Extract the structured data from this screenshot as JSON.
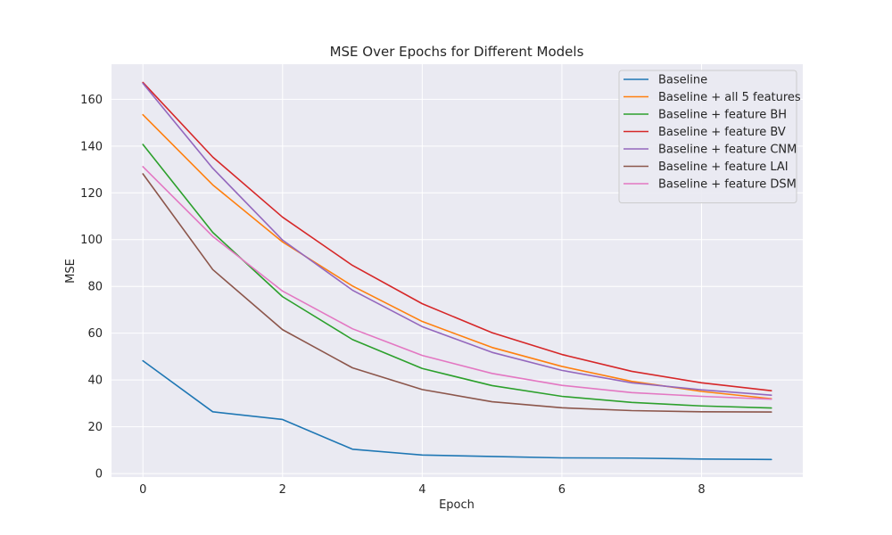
{
  "chart_data": {
    "type": "line",
    "title": "MSE Over Epochs for Different Models",
    "xlabel": "Epoch",
    "ylabel": "MSE",
    "xlim": [
      -0.45,
      9.45
    ],
    "ylim": [
      -1.5,
      175
    ],
    "xticks": [
      0,
      2,
      4,
      6,
      8
    ],
    "yticks": [
      0,
      20,
      40,
      60,
      80,
      100,
      120,
      140,
      160
    ],
    "grid": true,
    "legend_position": "top-right",
    "x": [
      0,
      1,
      2,
      3,
      4,
      5,
      6,
      7,
      8,
      9
    ],
    "series": [
      {
        "name": "Baseline",
        "color": "#1f77b4",
        "values": [
          48.2,
          26.4,
          23.1,
          10.4,
          7.9,
          7.3,
          6.7,
          6.6,
          6.2,
          6.0
        ]
      },
      {
        "name": "Baseline + all 5 features",
        "color": "#ff7f0e",
        "values": [
          153.4,
          123.4,
          99.0,
          80.2,
          65.0,
          53.9,
          45.8,
          39.4,
          35.1,
          32.0
        ]
      },
      {
        "name": "Baseline + feature BH",
        "color": "#2ca02c",
        "values": [
          140.7,
          103.1,
          75.6,
          57.3,
          44.9,
          37.6,
          33.0,
          30.4,
          28.9,
          28.0
        ]
      },
      {
        "name": "Baseline + feature BV",
        "color": "#d62728",
        "values": [
          167.2,
          135.3,
          109.6,
          89.0,
          72.6,
          60.2,
          50.9,
          43.7,
          38.8,
          35.4
        ]
      },
      {
        "name": "Baseline + feature CNM",
        "color": "#9467bd",
        "values": [
          166.8,
          130.5,
          99.8,
          78.4,
          62.8,
          51.8,
          44.1,
          38.8,
          35.8,
          33.5
        ]
      },
      {
        "name": "Baseline + feature LAI",
        "color": "#8c564b",
        "values": [
          128.1,
          87.2,
          61.5,
          45.2,
          35.9,
          30.7,
          28.1,
          26.9,
          26.4,
          26.3
        ]
      },
      {
        "name": "Baseline + feature DSM",
        "color": "#e377c2",
        "values": [
          131.2,
          101.4,
          78.0,
          61.9,
          50.5,
          42.8,
          37.7,
          34.6,
          33.0,
          31.8
        ]
      }
    ]
  }
}
